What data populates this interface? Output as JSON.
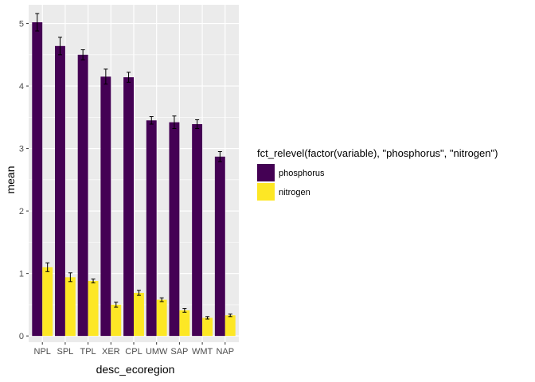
{
  "chart_data": {
    "type": "bar",
    "categories": [
      "NPL",
      "SPL",
      "TPL",
      "XER",
      "CPL",
      "UMW",
      "SAP",
      "WMT",
      "NAP"
    ],
    "series": [
      {
        "name": "phosphorus",
        "color": "#440154",
        "values": [
          5.02,
          4.64,
          4.5,
          4.15,
          4.14,
          3.45,
          3.42,
          3.39,
          2.87
        ],
        "errors": [
          0.14,
          0.14,
          0.08,
          0.12,
          0.08,
          0.06,
          0.1,
          0.07,
          0.08
        ]
      },
      {
        "name": "nitrogen",
        "color": "#FDE725",
        "values": [
          1.1,
          0.94,
          0.88,
          0.5,
          0.69,
          0.58,
          0.41,
          0.29,
          0.33
        ],
        "errors": [
          0.07,
          0.07,
          0.03,
          0.04,
          0.04,
          0.03,
          0.03,
          0.02,
          0.02
        ]
      }
    ],
    "xlabel": "desc_ecoregion",
    "ylabel": "mean",
    "ylim": [
      -0.1,
      5.3
    ],
    "yticks": [
      "0",
      "1",
      "2",
      "3",
      "4",
      "5"
    ],
    "legend": {
      "title": "fct_relevel(factor(variable), \"phosphorus\", \"nitrogen\")",
      "position": "right"
    },
    "grid": true,
    "panel_background": "#EBEBEB"
  }
}
